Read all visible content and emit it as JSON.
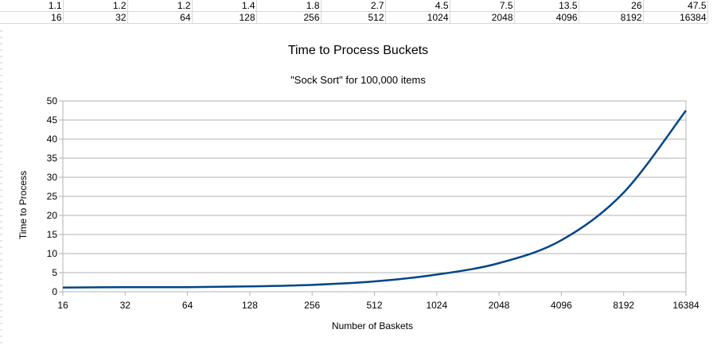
{
  "sheet": {
    "rows": [
      [
        "1.1",
        "1.2",
        "1.2",
        "1.4",
        "1.8",
        "2.7",
        "4.5",
        "7.5",
        "13.5",
        "26",
        "47.5"
      ],
      [
        "16",
        "32",
        "64",
        "128",
        "256",
        "512",
        "1024",
        "2048",
        "4096",
        "8192",
        "16384"
      ]
    ]
  },
  "chart_data": {
    "type": "line",
    "title": "Time to Process Buckets",
    "subtitle": "\"Sock Sort\" for 100,000 items",
    "xlabel": "Number of Baskets",
    "ylabel": "Time to Process",
    "categories": [
      "16",
      "32",
      "64",
      "128",
      "256",
      "512",
      "1024",
      "2048",
      "4096",
      "8192",
      "16384"
    ],
    "series": [
      {
        "values": [
          1.1,
          1.2,
          1.2,
          1.4,
          1.8,
          2.7,
          4.5,
          7.5,
          13.5,
          26,
          47.5
        ],
        "color": "#004586"
      }
    ],
    "ylim": [
      0,
      50
    ],
    "yticks": [
      0,
      5,
      10,
      15,
      20,
      25,
      30,
      35,
      40,
      45,
      50
    ],
    "grid": true,
    "smooth": true
  }
}
